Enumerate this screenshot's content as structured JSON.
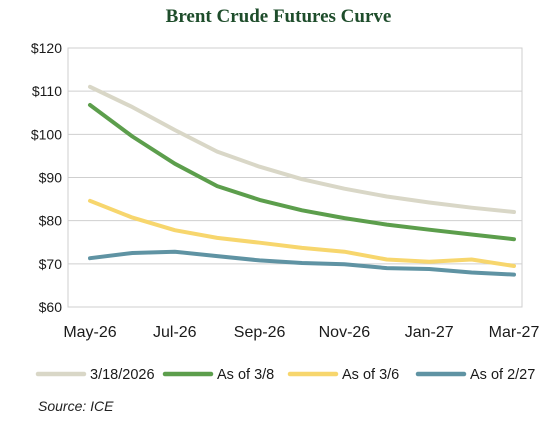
{
  "chart_data": {
    "type": "line",
    "title": "Brent Crude Futures Curve",
    "xlabel": "",
    "ylabel": "",
    "x": [
      "May-26",
      "Jun-26",
      "Jul-26",
      "Aug-26",
      "Sep-26",
      "Oct-26",
      "Nov-26",
      "Dec-26",
      "Jan-27",
      "Feb-27",
      "Mar-27"
    ],
    "x_tick_labels": [
      "May-26",
      "Jul-26",
      "Sep-26",
      "Nov-26",
      "Jan-27",
      "Mar-27"
    ],
    "y_tick_labels": [
      "$60",
      "$70",
      "$80",
      "$90",
      "$100",
      "$110",
      "$120"
    ],
    "ylim": [
      60,
      120
    ],
    "grid": true,
    "legend_position": "bottom",
    "series": [
      {
        "name": "3/18/2026",
        "color": "#d9d7c7",
        "values": [
          111,
          106.3,
          101.0,
          96.0,
          92.5,
          89.6,
          87.4,
          85.6,
          84.2,
          83.0,
          82.0
        ]
      },
      {
        "name": "As of 3/8",
        "color": "#5c9e4c",
        "values": [
          106.8,
          99.5,
          93.2,
          88.0,
          84.8,
          82.4,
          80.6,
          79.1,
          77.9,
          76.8,
          75.7
        ]
      },
      {
        "name": "As of 3/6",
        "color": "#f7d66d",
        "values": [
          84.6,
          80.7,
          77.8,
          76.0,
          74.9,
          73.7,
          72.8,
          71.0,
          70.5,
          71.0,
          69.5
        ]
      },
      {
        "name": "As of 2/27",
        "color": "#5f93a3",
        "values": [
          71.3,
          72.5,
          72.8,
          71.8,
          70.8,
          70.2,
          69.9,
          69.0,
          68.8,
          68.0,
          67.5
        ]
      }
    ]
  },
  "source_text": "Source: ICE"
}
